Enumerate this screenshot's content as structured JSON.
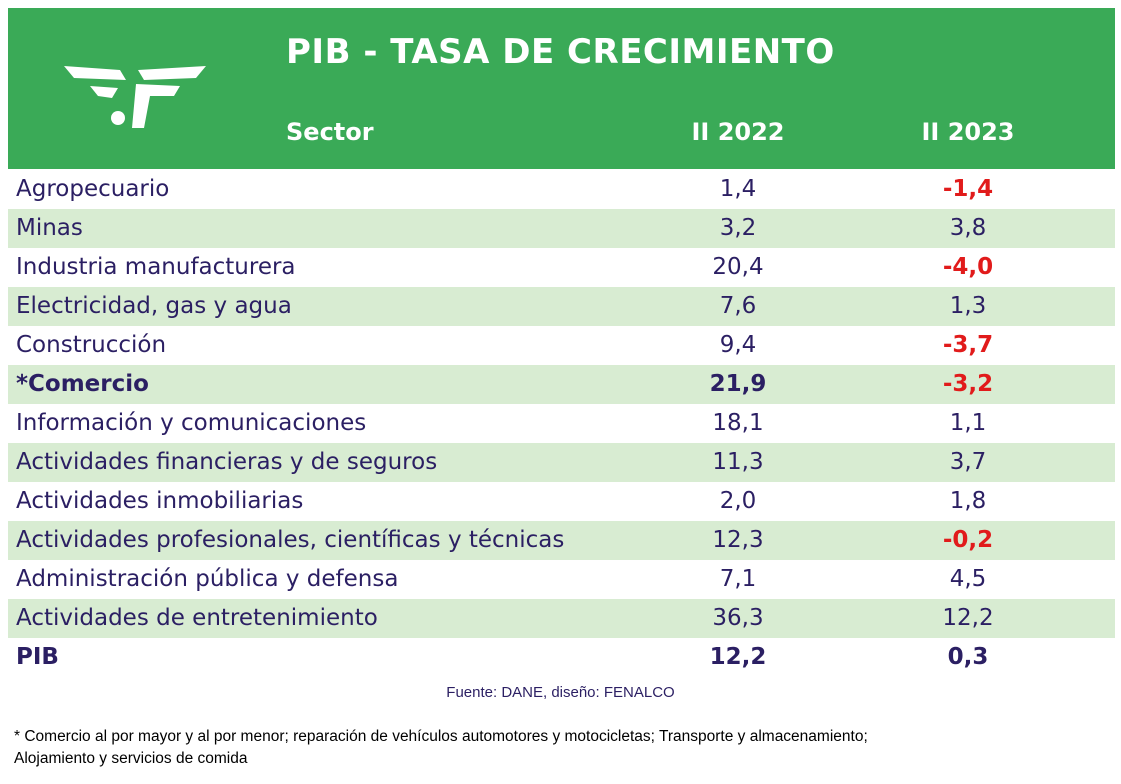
{
  "header": {
    "title": "PIB - TASA DE CRECIMIENTO",
    "col_sector": "Sector",
    "col_2022": "II 2022",
    "col_2023": "II 2023",
    "logo_icon": "fenalco-logo-icon",
    "background_color": "#3aaa57"
  },
  "rows": [
    {
      "sector": "Agropecuario",
      "v2022": "1,4",
      "v2023": "-1,4",
      "neg": true,
      "bold": false
    },
    {
      "sector": "Minas",
      "v2022": "3,2",
      "v2023": "3,8",
      "neg": false,
      "bold": false
    },
    {
      "sector": "Industria manufacturera",
      "v2022": "20,4",
      "v2023": "-4,0",
      "neg": true,
      "bold": false
    },
    {
      "sector": "Electricidad, gas y agua",
      "v2022": "7,6",
      "v2023": "1,3",
      "neg": false,
      "bold": false
    },
    {
      "sector": "Construcción",
      "v2022": "9,4",
      "v2023": "-3,7",
      "neg": true,
      "bold": false
    },
    {
      "sector": "*Comercio",
      "v2022": "21,9",
      "v2023": "-3,2",
      "neg": true,
      "bold": true
    },
    {
      "sector": "Información y comunicaciones",
      "v2022": "18,1",
      "v2023": "1,1",
      "neg": false,
      "bold": false
    },
    {
      "sector": "Actividades financieras y de seguros",
      "v2022": "11,3",
      "v2023": "3,7",
      "neg": false,
      "bold": false
    },
    {
      "sector": "Actividades inmobiliarias",
      "v2022": "2,0",
      "v2023": "1,8",
      "neg": false,
      "bold": false
    },
    {
      "sector": "Actividades profesionales, científicas y técnicas",
      "v2022": "12,3",
      "v2023": "-0,2",
      "neg": true,
      "bold": false
    },
    {
      "sector": "Administración pública y defensa",
      "v2022": "7,1",
      "v2023": "4,5",
      "neg": false,
      "bold": false
    },
    {
      "sector": "Actividades de entretenimiento",
      "v2022": "36,3",
      "v2023": "12,2",
      "neg": false,
      "bold": false
    },
    {
      "sector": "PIB",
      "v2022": "12,2",
      "v2023": "0,3",
      "neg": false,
      "bold": true
    }
  ],
  "source": "Fuente: DANE, diseño: FENALCO",
  "note_line1": "* Comercio al por mayor y al por menor; reparación de vehículos automotores y motocicletas; Transporte y almacenamiento;",
  "note_line2": "Alojamiento y servicios de comida",
  "colors": {
    "text": "#2b1f63",
    "negative": "#e11b1b",
    "row_alt": "#d8ecd2"
  }
}
